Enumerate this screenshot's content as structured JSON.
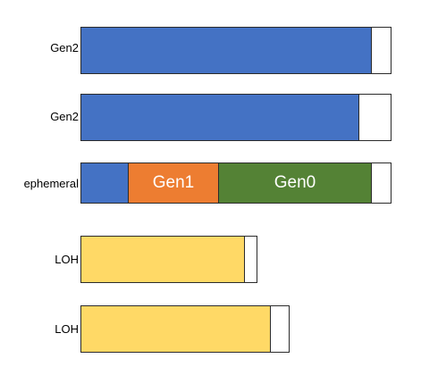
{
  "colors": {
    "gen2": "#4472c4",
    "gen1": "#ed7d31",
    "gen0": "#548235",
    "loh": "#ffd966",
    "empty": "#ffffff"
  },
  "rows": [
    {
      "label": "Gen2",
      "segments": [
        {
          "kind": "gen2",
          "text": ""
        },
        {
          "kind": "empty",
          "text": ""
        }
      ]
    },
    {
      "label": "Gen2",
      "segments": [
        {
          "kind": "gen2",
          "text": ""
        },
        {
          "kind": "empty",
          "text": ""
        }
      ]
    },
    {
      "label": "ephemeral",
      "segments": [
        {
          "kind": "gen2",
          "text": ""
        },
        {
          "kind": "gen1",
          "text": "Gen1"
        },
        {
          "kind": "gen0",
          "text": "Gen0"
        },
        {
          "kind": "empty",
          "text": ""
        }
      ]
    },
    {
      "label": "LOH",
      "segments": [
        {
          "kind": "loh",
          "text": ""
        },
        {
          "kind": "empty",
          "text": ""
        }
      ]
    },
    {
      "label": "LOH",
      "segments": [
        {
          "kind": "loh",
          "text": ""
        },
        {
          "kind": "empty",
          "text": ""
        }
      ]
    }
  ]
}
